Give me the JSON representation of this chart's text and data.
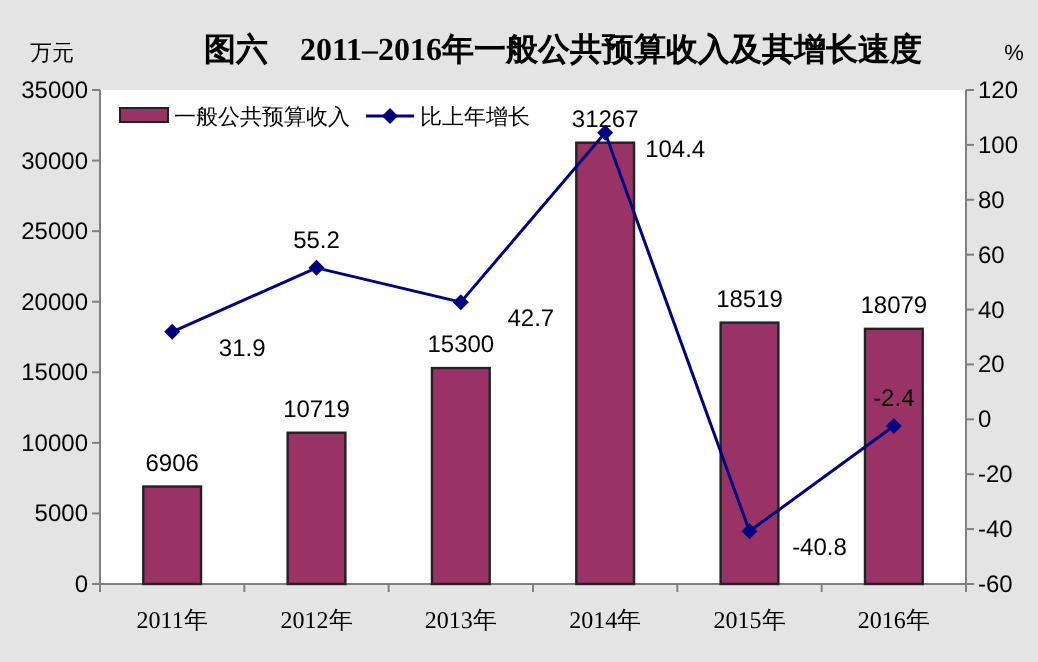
{
  "chart_data": {
    "type": "bar",
    "title": "图六　2011–2016年一般公共预算收入及其增长速度",
    "ylabel": "万元",
    "y2label": "%",
    "categories": [
      "2011年",
      "2012年",
      "2013年",
      "2014年",
      "2015年",
      "2016年"
    ],
    "series": [
      {
        "name": "一般公共预算收入",
        "color": "#993366",
        "values": [
          6906,
          10719,
          15300,
          31267,
          18519,
          18079
        ]
      },
      {
        "name": "比上年增长",
        "type": "line",
        "axis": "y2",
        "color": "#000080",
        "marker": "diamond",
        "values": [
          31.9,
          55.2,
          42.7,
          104.4,
          -40.8,
          -2.4
        ]
      }
    ],
    "ylim": [
      0,
      35000
    ],
    "yticks": [
      0,
      5000,
      10000,
      15000,
      20000,
      25000,
      30000,
      35000
    ],
    "y2lim": [
      -60,
      120
    ],
    "y2ticks": [
      -60,
      -40,
      -20,
      0,
      20,
      40,
      60,
      80,
      100,
      120
    ],
    "data_labels": true,
    "legend": "top left",
    "grid": false
  }
}
